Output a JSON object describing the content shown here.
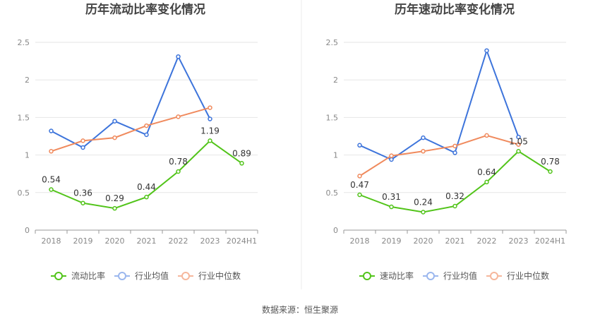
{
  "source": "数据来源：恒生聚源",
  "chart_data": [
    {
      "type": "line",
      "title": "历年流动比率变化情况",
      "categories": [
        "2018",
        "2019",
        "2020",
        "2021",
        "2022",
        "2023",
        "2024H1"
      ],
      "ylim": [
        0,
        2.5
      ],
      "yticks": [
        "0",
        "0.5",
        "1",
        "1.5",
        "2",
        "2.5"
      ],
      "grid": true,
      "legend_position": "bottom",
      "series": [
        {
          "name": "流动比率",
          "color": "#52c41a",
          "values": [
            0.54,
            0.36,
            0.29,
            0.44,
            0.78,
            1.19,
            0.89
          ],
          "labels": [
            "0.54",
            "0.36",
            "0.29",
            "0.44",
            "0.78",
            "1.19",
            "0.89"
          ]
        },
        {
          "name": "行业均值",
          "color": "#3d74db",
          "values": [
            1.32,
            1.1,
            1.45,
            1.27,
            2.31,
            1.48,
            null
          ]
        },
        {
          "name": "行业中位数",
          "color": "#f08a5d",
          "values": [
            1.05,
            1.19,
            1.23,
            1.39,
            1.51,
            1.63,
            null
          ]
        }
      ]
    },
    {
      "type": "line",
      "title": "历年速动比率变化情况",
      "categories": [
        "2018",
        "2019",
        "2020",
        "2021",
        "2022",
        "2023",
        "2024H1"
      ],
      "ylim": [
        0,
        2.5
      ],
      "yticks": [
        "0",
        "0.5",
        "1",
        "1.5",
        "2",
        "2.5"
      ],
      "grid": true,
      "legend_position": "bottom",
      "series": [
        {
          "name": "速动比率",
          "color": "#52c41a",
          "values": [
            0.47,
            0.31,
            0.24,
            0.32,
            0.64,
            1.05,
            0.78
          ],
          "labels": [
            "0.47",
            "0.31",
            "0.24",
            "0.32",
            "0.64",
            "1.05",
            "0.78"
          ]
        },
        {
          "name": "行业均值",
          "color": "#3d74db",
          "values": [
            1.13,
            0.94,
            1.23,
            1.03,
            2.39,
            1.24,
            null
          ]
        },
        {
          "name": "行业中位数",
          "color": "#f08a5d",
          "values": [
            0.72,
            0.99,
            1.05,
            1.12,
            1.26,
            1.14,
            null
          ]
        }
      ]
    }
  ]
}
